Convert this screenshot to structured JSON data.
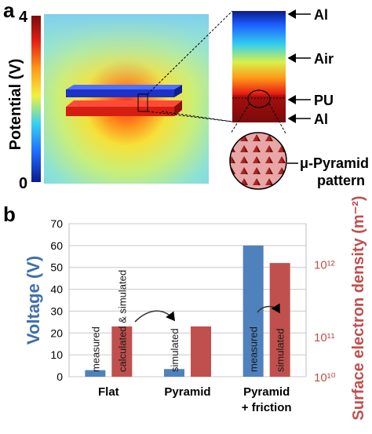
{
  "panel_a": {
    "label": "a",
    "colorbar": {
      "label": "Potential (V)",
      "max_label": "4",
      "min_label": "0",
      "colors": [
        "#0a1a8c",
        "#1e6cff",
        "#35d1f0",
        "#f2f23c",
        "#ff9a1a",
        "#e21e12",
        "#7a0a0a"
      ]
    },
    "layer_labels": [
      "Al",
      "Air",
      "PU",
      "Al"
    ],
    "inset_label_line1": "μ-Pyramid",
    "inset_label_line2": "pattern"
  },
  "panel_b": {
    "label": "b"
  },
  "chart_data": {
    "type": "bar",
    "categories": [
      "Flat",
      "Pyramid",
      "Pyramid\n+ friction"
    ],
    "category_label_lines": [
      [
        "Flat"
      ],
      [
        "Pyramid"
      ],
      [
        "Pyramid",
        "+ friction"
      ]
    ],
    "ylabel": "Voltage (V)",
    "y2label": "Surface electron density (m⁻²)",
    "ylim": [
      0,
      70
    ],
    "yticks": [
      "0",
      "10",
      "20",
      "30",
      "40",
      "50",
      "60",
      "70"
    ],
    "y2_scale": "log",
    "y2ticks": [
      "10¹⁰",
      "10¹¹",
      "10¹²"
    ],
    "y2_tick_positions_in_y_units": [
      0,
      18.3,
      51.6
    ],
    "grid": true,
    "series": [
      {
        "color": "#4f81bd",
        "values": [
          3,
          3.5,
          60
        ],
        "bar_labels": [
          "measured",
          "simulated",
          "measured"
        ]
      },
      {
        "color": "#c0504d",
        "values": [
          23,
          23,
          52
        ],
        "bar_labels": [
          "calculated & simulated",
          "",
          "simulated"
        ]
      }
    ],
    "colors": {
      "blue": "#4f81bd",
      "red": "#c0504d",
      "ylabel_color": "#3f6fad",
      "y2label_color": "#c0504d"
    }
  }
}
